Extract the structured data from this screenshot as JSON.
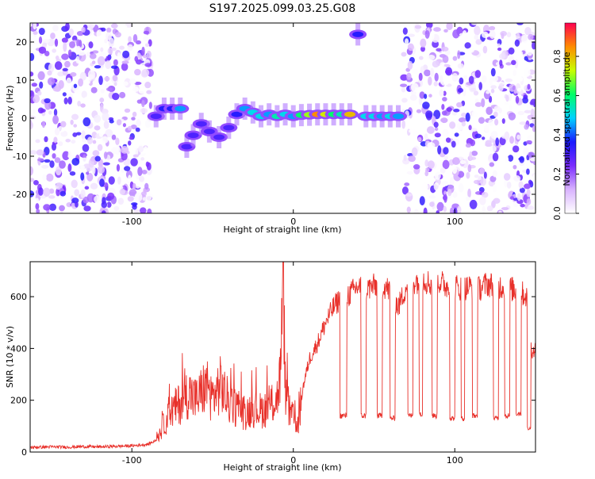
{
  "title": "S197.2025.099.03.25.G08",
  "chart_data": [
    {
      "type": "heatmap",
      "xlabel": "Height of straight line (km)",
      "ylabel": "Frequency (Hz)",
      "xlim": [
        -163,
        150
      ],
      "ylim": [
        -25,
        25
      ],
      "xticks": [
        -100,
        0,
        100
      ],
      "yticks": [
        -20,
        -10,
        0,
        10,
        20
      ],
      "colorbar": {
        "label": "Normalized spectral amplitude",
        "range": [
          0,
          0.97
        ],
        "ticks": [
          0.0,
          0.2,
          0.4,
          0.6,
          0.8
        ],
        "colormap": [
          "#ffffff",
          "#d9b3ff",
          "#7b2cff",
          "#1a1aff",
          "#00d2ff",
          "#00ff66",
          "#c8ff00",
          "#ff8c00",
          "#ff0050"
        ]
      },
      "noise_regions": [
        {
          "x": [
            -163,
            -88
          ],
          "y": [
            -25,
            25
          ]
        },
        {
          "x": [
            68,
            150
          ],
          "y": [
            -25,
            25
          ]
        }
      ],
      "signal_track": [
        {
          "x": -85,
          "y": 0.5,
          "amp": 0.3
        },
        {
          "x": -80,
          "y": 2.5,
          "amp": 0.35
        },
        {
          "x": -75,
          "y": 2.5,
          "amp": 0.35
        },
        {
          "x": -70,
          "y": 2.5,
          "amp": 0.45
        },
        {
          "x": -66,
          "y": -7.5,
          "amp": 0.3
        },
        {
          "x": -62,
          "y": -4.5,
          "amp": 0.3
        },
        {
          "x": -57,
          "y": -1.5,
          "amp": 0.3
        },
        {
          "x": -52,
          "y": -3.5,
          "amp": 0.3
        },
        {
          "x": -46,
          "y": -5.0,
          "amp": 0.3
        },
        {
          "x": -40,
          "y": -2.5,
          "amp": 0.3
        },
        {
          "x": -35,
          "y": 1.0,
          "amp": 0.35
        },
        {
          "x": -30,
          "y": 2.5,
          "amp": 0.45
        },
        {
          "x": -25,
          "y": 1.5,
          "amp": 0.5
        },
        {
          "x": -20,
          "y": 0.5,
          "amp": 0.5
        },
        {
          "x": -15,
          "y": 1.0,
          "amp": 0.45
        },
        {
          "x": -10,
          "y": 0.5,
          "amp": 0.55
        },
        {
          "x": -5,
          "y": 1.0,
          "amp": 0.5
        },
        {
          "x": 0,
          "y": 0.5,
          "amp": 0.45
        },
        {
          "x": 5,
          "y": 0.8,
          "amp": 0.6
        },
        {
          "x": 10,
          "y": 0.9,
          "amp": 0.7
        },
        {
          "x": 15,
          "y": 1.0,
          "amp": 0.85
        },
        {
          "x": 20,
          "y": 1.0,
          "amp": 0.75
        },
        {
          "x": 25,
          "y": 1.0,
          "amp": 0.6
        },
        {
          "x": 30,
          "y": 1.0,
          "amp": 0.55
        },
        {
          "x": 35,
          "y": 1.0,
          "amp": 0.8
        },
        {
          "x": 40,
          "y": 22.0,
          "amp": 0.35
        },
        {
          "x": 45,
          "y": 0.5,
          "amp": 0.5
        },
        {
          "x": 50,
          "y": 0.5,
          "amp": 0.5
        },
        {
          "x": 55,
          "y": 0.5,
          "amp": 0.45
        },
        {
          "x": 60,
          "y": 0.5,
          "amp": 0.5
        },
        {
          "x": 65,
          "y": 0.5,
          "amp": 0.45
        }
      ]
    },
    {
      "type": "line",
      "xlabel": "Height of straight line (km)",
      "ylabel": "SNR (10 * v/v)",
      "xlim": [
        -163,
        150
      ],
      "ylim": [
        0,
        735
      ],
      "xticks": [
        -100,
        0,
        100
      ],
      "yticks": [
        0,
        200,
        400,
        600
      ],
      "color": "#e8302a",
      "series": [
        {
          "x": [
            -163,
            -150,
            -140,
            -130,
            -120,
            -110,
            -100,
            -90,
            -85,
            -80,
            -75,
            -70,
            -65,
            -60,
            -55,
            -50,
            -45,
            -40,
            -35,
            -30,
            -25,
            -20,
            -15,
            -10,
            -8,
            -6,
            -5,
            -3,
            0,
            3,
            6,
            10,
            15,
            20,
            25,
            30,
            35,
            40,
            45,
            50,
            55,
            60,
            65,
            70,
            75,
            80,
            85,
            90,
            95,
            100,
            105,
            110,
            115,
            120,
            125,
            130,
            135,
            140,
            145,
            148,
            150
          ],
          "y": [
            18,
            20,
            19,
            21,
            20,
            22,
            24,
            30,
            45,
            110,
            160,
            190,
            230,
            200,
            250,
            210,
            260,
            190,
            170,
            150,
            170,
            160,
            175,
            210,
            300,
            700,
            250,
            160,
            130,
            110,
            250,
            360,
            420,
            500,
            560,
            600,
            610,
            640,
            630,
            640,
            650,
            620,
            560,
            640,
            660,
            670,
            650,
            660,
            640,
            640,
            630,
            640,
            630,
            650,
            640,
            640,
            630,
            620,
            600,
            380,
            400
          ]
        }
      ],
      "dropouts": [
        {
          "x0": 29,
          "x1": 33,
          "y": 140
        },
        {
          "x0": 42,
          "x1": 45,
          "y": 140
        },
        {
          "x0": 52,
          "x1": 55,
          "y": 140
        },
        {
          "x0": 60,
          "x1": 63,
          "y": 130
        },
        {
          "x0": 71,
          "x1": 74,
          "y": 140
        },
        {
          "x0": 78,
          "x1": 80,
          "y": 150
        },
        {
          "x0": 86,
          "x1": 89,
          "y": 140
        },
        {
          "x0": 97,
          "x1": 100,
          "y": 130
        },
        {
          "x0": 104,
          "x1": 106,
          "y": 130
        },
        {
          "x0": 111,
          "x1": 114,
          "y": 140
        },
        {
          "x0": 124,
          "x1": 127,
          "y": 130
        },
        {
          "x0": 131,
          "x1": 134,
          "y": 140
        },
        {
          "x0": 138,
          "x1": 141,
          "y": 150
        },
        {
          "x0": 145,
          "x1": 147,
          "y": 90
        }
      ]
    }
  ]
}
